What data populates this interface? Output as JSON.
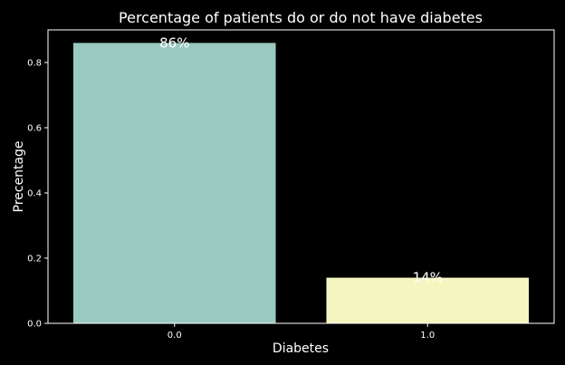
{
  "chart_data": {
    "type": "bar",
    "title": "Percentage of patients do or do not have diabetes",
    "xlabel": "Diabetes",
    "ylabel": "Precentage",
    "categories": [
      "0.0",
      "1.0"
    ],
    "values": [
      0.86,
      0.14
    ],
    "data_labels": [
      "86%",
      "14%"
    ],
    "bar_colors": [
      "#99c9c0",
      "#f5f5bf"
    ],
    "ylim": [
      0,
      0.9
    ],
    "yticks": [
      0.0,
      0.2,
      0.4,
      0.6,
      0.8
    ],
    "ytick_labels": [
      "0.0",
      "0.2",
      "0.4",
      "0.6",
      "0.8"
    ],
    "grid": false,
    "background": "#000000",
    "text_color": "#ffffff"
  }
}
